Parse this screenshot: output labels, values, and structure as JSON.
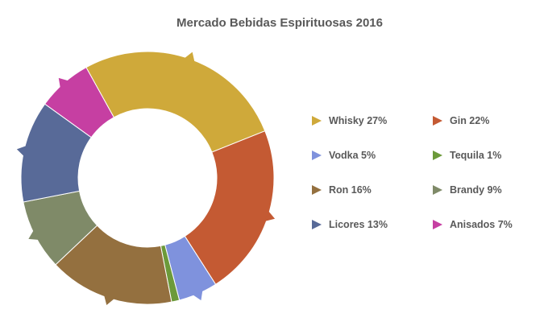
{
  "chart_data": {
    "type": "donut",
    "title": "Mercado Bebidas Espirituosas 2016",
    "series": [
      {
        "name": "Whisky",
        "value": 27,
        "label": "Whisky 27%",
        "color": "#CFA93A"
      },
      {
        "name": "Gin",
        "value": 22,
        "label": "Gin 22%",
        "color": "#C45A33"
      },
      {
        "name": "Vodka",
        "value": 5,
        "label": "Vodka 5%",
        "color": "#7F92DD"
      },
      {
        "name": "Tequila",
        "value": 1,
        "label": "Tequila 1%",
        "color": "#6C9A3A"
      },
      {
        "name": "Ron",
        "value": 16,
        "label": "Ron 16%",
        "color": "#94703F"
      },
      {
        "name": "Brandy",
        "value": 9,
        "label": "Brandy 9%",
        "color": "#7F8A68"
      },
      {
        "name": "Licores",
        "value": 13,
        "label": "Licores 13%",
        "color": "#586A98"
      },
      {
        "name": "Anisados",
        "value": 7,
        "label": "Anisados 7%",
        "color": "#C63FA2"
      }
    ],
    "legend_position": "right"
  }
}
